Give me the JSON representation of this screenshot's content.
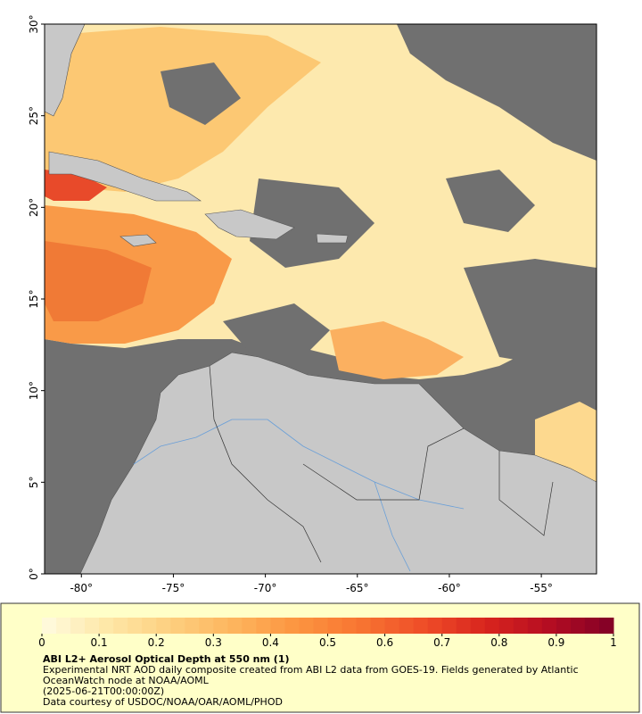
{
  "chart_data": {
    "type": "map",
    "title": "ABI L2+ Aerosol Optical Depth at 550 nm (1)",
    "description": "Experimental NRT AOD daily composite created from ABI L2 data from GOES-19. Fields generated by Atlantic OceanWatch node at NOAA/AOML",
    "timestamp": "(2025-06-21T00:00:00Z)",
    "credit": "Data courtesy of USDOC/NOAA/OAR/AOML/PHOD",
    "xlim": [
      -82,
      -52
    ],
    "ylim": [
      0,
      30
    ],
    "xticks": [
      {
        "value": -80,
        "label": "-80°"
      },
      {
        "value": -75,
        "label": "-75°"
      },
      {
        "value": -70,
        "label": "-70°"
      },
      {
        "value": -65,
        "label": "-65°"
      },
      {
        "value": -60,
        "label": "-60°"
      },
      {
        "value": -55,
        "label": "-55°"
      }
    ],
    "yticks": [
      {
        "value": 0,
        "label": "0°"
      },
      {
        "value": 5,
        "label": "5°"
      },
      {
        "value": 10,
        "label": "10°"
      },
      {
        "value": 15,
        "label": "15°"
      },
      {
        "value": 20,
        "label": "20°"
      },
      {
        "value": 25,
        "label": "25°"
      },
      {
        "value": 30,
        "label": "30°"
      }
    ],
    "colorbar": {
      "lim": [
        0,
        1
      ],
      "ticks": [
        0,
        0.1,
        0.2,
        0.3,
        0.4,
        0.5,
        0.6,
        0.7,
        0.8,
        0.9,
        1
      ],
      "colors": [
        "#fffbe0",
        "#fee8a8",
        "#fdd080",
        "#fdb55e",
        "#fc9540",
        "#f87532",
        "#ef4e28",
        "#d8241e",
        "#b40d22",
        "#800026"
      ]
    }
  }
}
